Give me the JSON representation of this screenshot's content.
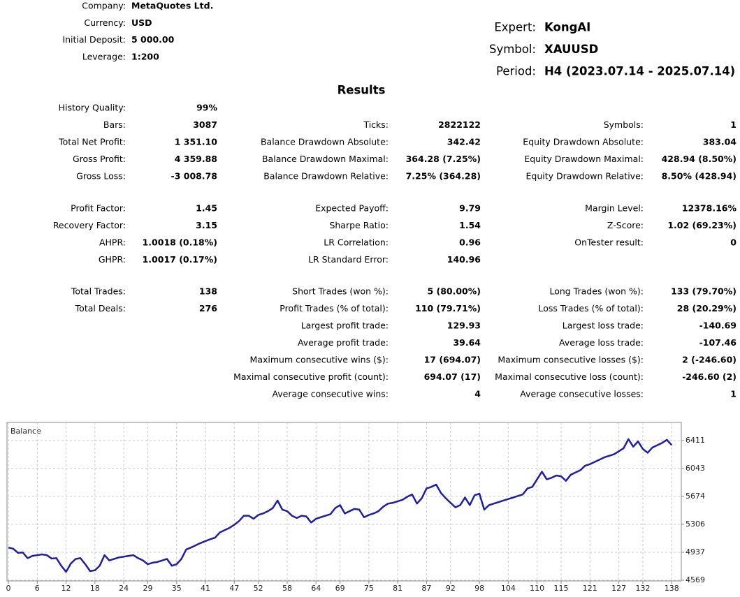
{
  "header": {
    "account": [
      {
        "label": "Company:",
        "value": "MetaQuotes Ltd."
      },
      {
        "label": "Currency:",
        "value": "USD"
      },
      {
        "label": "Initial Deposit:",
        "value": "5 000.00"
      },
      {
        "label": "Leverage:",
        "value": "1:200"
      }
    ],
    "expert": [
      {
        "label": "Expert:",
        "value": "KongAI"
      },
      {
        "label": "Symbol:",
        "value": "XAUUSD"
      },
      {
        "label": "Period:",
        "value": "H4 (2023.07.14 - 2025.07.14)"
      }
    ]
  },
  "results": {
    "title": "Results",
    "sections": [
      [
        [
          {
            "label": "History Quality:",
            "value": "99%"
          },
          null,
          null
        ],
        [
          {
            "label": "Bars:",
            "value": "3087"
          },
          {
            "label": "Ticks:",
            "value": "2822122"
          },
          {
            "label": "Symbols:",
            "value": "1"
          }
        ],
        [
          {
            "label": "Total Net Profit:",
            "value": "1 351.10"
          },
          {
            "label": "Balance Drawdown Absolute:",
            "value": "342.42"
          },
          {
            "label": "Equity Drawdown Absolute:",
            "value": "383.04"
          }
        ],
        [
          {
            "label": "Gross Profit:",
            "value": "4 359.88"
          },
          {
            "label": "Balance Drawdown Maximal:",
            "value": "364.28 (7.25%)"
          },
          {
            "label": "Equity Drawdown Maximal:",
            "value": "428.94 (8.50%)"
          }
        ],
        [
          {
            "label": "Gross Loss:",
            "value": "-3 008.78"
          },
          {
            "label": "Balance Drawdown Relative:",
            "value": "7.25% (364.28)"
          },
          {
            "label": "Equity Drawdown Relative:",
            "value": "8.50% (428.94)"
          }
        ]
      ],
      [
        [
          {
            "label": "Profit Factor:",
            "value": "1.45"
          },
          {
            "label": "Expected Payoff:",
            "value": "9.79"
          },
          {
            "label": "Margin Level:",
            "value": "12378.16%"
          }
        ],
        [
          {
            "label": "Recovery Factor:",
            "value": "3.15"
          },
          {
            "label": "Sharpe Ratio:",
            "value": "1.54"
          },
          {
            "label": "Z-Score:",
            "value": "1.02 (69.23%)"
          }
        ],
        [
          {
            "label": "AHPR:",
            "value": "1.0018 (0.18%)"
          },
          {
            "label": "LR Correlation:",
            "value": "0.96"
          },
          {
            "label": "OnTester result:",
            "value": "0"
          }
        ],
        [
          {
            "label": "GHPR:",
            "value": "1.0017 (0.17%)"
          },
          {
            "label": "LR Standard Error:",
            "value": "140.96"
          },
          null
        ]
      ],
      [
        [
          {
            "label": "Total Trades:",
            "value": "138"
          },
          {
            "label": "Short Trades (won %):",
            "value": "5 (80.00%)"
          },
          {
            "label": "Long Trades (won %):",
            "value": "133 (79.70%)"
          }
        ],
        [
          {
            "label": "Total Deals:",
            "value": "276"
          },
          {
            "label": "Profit Trades (% of total):",
            "value": "110 (79.71%)"
          },
          {
            "label": "Loss Trades (% of total):",
            "value": "28 (20.29%)"
          }
        ],
        [
          null,
          {
            "label": "Largest profit trade:",
            "value": "129.93"
          },
          {
            "label": "Largest loss trade:",
            "value": "-140.69"
          }
        ],
        [
          null,
          {
            "label": "Average profit trade:",
            "value": "39.64"
          },
          {
            "label": "Average loss trade:",
            "value": "-107.46"
          }
        ],
        [
          null,
          {
            "label": "Maximum consecutive wins ($):",
            "value": "17 (694.07)"
          },
          {
            "label": "Maximum consecutive losses ($):",
            "value": "2 (-246.60)"
          }
        ],
        [
          null,
          {
            "label": "Maximal consecutive profit (count):",
            "value": "694.07 (17)"
          },
          {
            "label": "Maximal consecutive loss (count):",
            "value": "-246.60 (2)"
          }
        ],
        [
          null,
          {
            "label": "Average consecutive wins:",
            "value": "4"
          },
          {
            "label": "Average consecutive losses:",
            "value": "1"
          }
        ]
      ]
    ]
  },
  "chart_data": {
    "type": "line",
    "title": "Balance",
    "x": [
      0,
      1,
      2,
      3,
      4,
      5,
      6,
      7,
      8,
      9,
      10,
      11,
      12,
      13,
      14,
      15,
      16,
      17,
      18,
      19,
      20,
      21,
      22,
      23,
      24,
      25,
      26,
      27,
      28,
      29,
      30,
      31,
      32,
      33,
      34,
      35,
      36,
      37,
      38,
      39,
      40,
      41,
      42,
      43,
      44,
      45,
      46,
      47,
      48,
      49,
      50,
      51,
      52,
      53,
      54,
      55,
      56,
      57,
      58,
      59,
      60,
      61,
      62,
      63,
      64,
      65,
      66,
      67,
      68,
      69,
      70,
      71,
      72,
      73,
      74,
      75,
      76,
      77,
      78,
      79,
      80,
      81,
      82,
      83,
      84,
      85,
      86,
      87,
      88,
      89,
      90,
      91,
      92,
      93,
      94,
      95,
      96,
      97,
      98,
      99,
      100,
      101,
      102,
      103,
      104,
      105,
      106,
      107,
      108,
      109,
      110,
      111,
      112,
      113,
      114,
      115,
      116,
      117,
      118,
      119,
      120,
      121,
      122,
      123,
      124,
      125,
      126,
      127,
      128,
      129,
      130,
      131,
      132,
      133,
      134,
      135,
      136,
      137,
      138
    ],
    "series": [
      {
        "color": "#1f1f9e",
        "values": [
          5000,
          4985,
          4930,
          4935,
          4860,
          4890,
          4900,
          4910,
          4900,
          4855,
          4860,
          4760,
          4680,
          4790,
          4850,
          4860,
          4780,
          4690,
          4700,
          4760,
          4900,
          4830,
          4850,
          4870,
          4880,
          4890,
          4900,
          4860,
          4830,
          4780,
          4800,
          4810,
          4830,
          4850,
          4760,
          4780,
          4850,
          4975,
          5000,
          5030,
          5060,
          5085,
          5110,
          5130,
          5200,
          5230,
          5260,
          5300,
          5350,
          5420,
          5420,
          5380,
          5430,
          5450,
          5480,
          5520,
          5620,
          5500,
          5480,
          5420,
          5390,
          5420,
          5410,
          5330,
          5380,
          5400,
          5420,
          5440,
          5520,
          5560,
          5450,
          5480,
          5510,
          5500,
          5400,
          5430,
          5450,
          5480,
          5540,
          5580,
          5590,
          5610,
          5630,
          5670,
          5700,
          5580,
          5650,
          5780,
          5800,
          5830,
          5720,
          5650,
          5590,
          5530,
          5560,
          5660,
          5560,
          5690,
          5710,
          5500,
          5560,
          5580,
          5600,
          5620,
          5640,
          5660,
          5680,
          5700,
          5780,
          5800,
          5900,
          6000,
          5900,
          5920,
          5950,
          5940,
          5880,
          5960,
          5990,
          6020,
          6080,
          6100,
          6130,
          6160,
          6190,
          6210,
          6230,
          6270,
          6310,
          6430,
          6330,
          6400,
          6300,
          6250,
          6320,
          6350,
          6380,
          6420,
          6351.1
        ]
      }
    ],
    "xlim": [
      0,
      140
    ],
    "ylim": [
      4569,
      6650
    ],
    "xticks": [
      0,
      6,
      12,
      18,
      24,
      29,
      35,
      41,
      47,
      52,
      58,
      64,
      69,
      75,
      81,
      87,
      92,
      98,
      104,
      110,
      115,
      121,
      127,
      132,
      138
    ],
    "yticks": [
      4569,
      4937,
      5306,
      5674,
      6043,
      6411
    ],
    "grid": true
  }
}
